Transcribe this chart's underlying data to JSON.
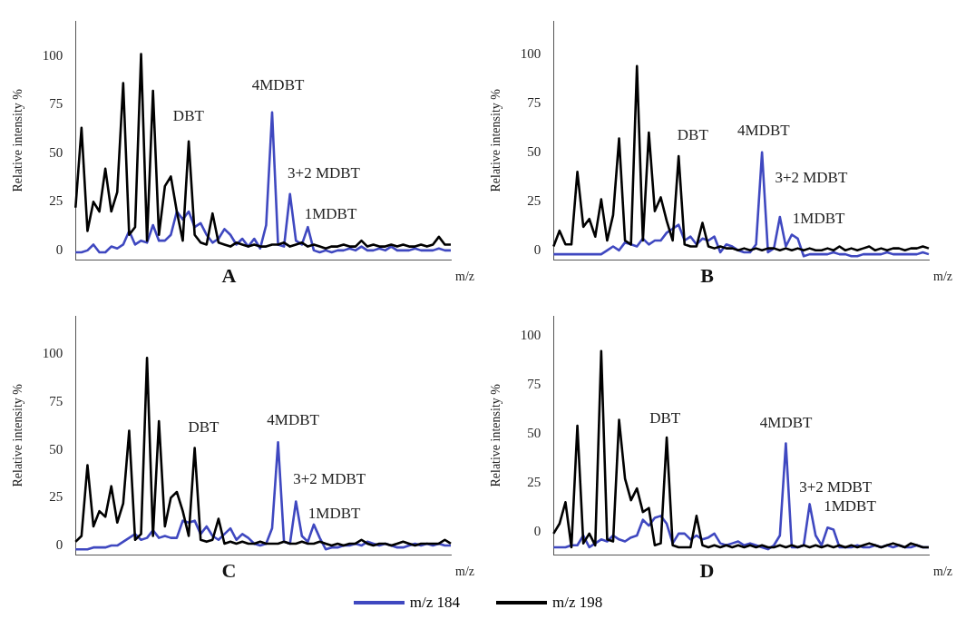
{
  "chart_data": [
    {
      "type": "line",
      "title": "A",
      "xlabel": "m/z",
      "ylabel": "Relative intensity %",
      "ylim": [
        -5,
        118
      ],
      "yticks": [
        0,
        25,
        50,
        75,
        100
      ],
      "tick_labels": "y",
      "grid": false,
      "categories": [
        null,
        null,
        null,
        null,
        null,
        null,
        null,
        null,
        null,
        null,
        null,
        null,
        null,
        null,
        null,
        null,
        null,
        null,
        null,
        null,
        null,
        null,
        null,
        null,
        null,
        null,
        null,
        null,
        null,
        null,
        null,
        null,
        null,
        null,
        null,
        null,
        null,
        null,
        null,
        null,
        null,
        null,
        null,
        null,
        null,
        null,
        null,
        null,
        null,
        null,
        null,
        null,
        null,
        null,
        null,
        null,
        null,
        null,
        null,
        null,
        null,
        null,
        null,
        null
      ],
      "series": [
        {
          "color": "#000000",
          "values": [
            22,
            63,
            10,
            25,
            20,
            42,
            20,
            30,
            86,
            8,
            12,
            101,
            5,
            82,
            8,
            33,
            38,
            20,
            5,
            56,
            8,
            4,
            3,
            19,
            4,
            3,
            2,
            4,
            3,
            2,
            3,
            2,
            2,
            3,
            3,
            4,
            2,
            3,
            4,
            2,
            3,
            2,
            1,
            2,
            2,
            3,
            2,
            2,
            5,
            2,
            3,
            2,
            2,
            3,
            2,
            3,
            2,
            2,
            3,
            2,
            3,
            7,
            3,
            3
          ]
        },
        {
          "color": "#3f48c0",
          "values": [
            -1,
            -1,
            0,
            3,
            -1,
            -1,
            2,
            1,
            3,
            10,
            3,
            5,
            4,
            13,
            5,
            5,
            8,
            20,
            16,
            20,
            12,
            14,
            8,
            4,
            6,
            11,
            8,
            3,
            6,
            2,
            6,
            1,
            13,
            71,
            3,
            2,
            29,
            5,
            3,
            12,
            0,
            -1,
            0,
            -1,
            0,
            0,
            1,
            0,
            2,
            0,
            0,
            1,
            0,
            2,
            0,
            0,
            0,
            1,
            0,
            0,
            0,
            1,
            0,
            0
          ]
        }
      ],
      "annotations": [
        "DBT",
        "4MDBT",
        "3+2 MDBT",
        "1MDBT"
      ]
    },
    {
      "type": "line",
      "title": "B",
      "xlabel": "m/z",
      "ylabel": "Relative intensity %",
      "ylim": [
        -5,
        117
      ],
      "yticks": [
        0,
        25,
        50,
        75,
        100
      ],
      "tick_labels": "y",
      "grid": false,
      "categories": [
        null,
        null,
        null,
        null,
        null,
        null,
        null,
        null,
        null,
        null,
        null,
        null,
        null,
        null,
        null,
        null,
        null,
        null,
        null,
        null,
        null,
        null,
        null,
        null,
        null,
        null,
        null,
        null,
        null,
        null,
        null,
        null,
        null,
        null,
        null,
        null,
        null,
        null,
        null,
        null,
        null,
        null,
        null,
        null,
        null,
        null,
        null,
        null,
        null,
        null,
        null,
        null,
        null,
        null,
        null,
        null,
        null,
        null,
        null,
        null,
        null,
        null,
        null,
        null
      ],
      "series": [
        {
          "color": "#000000",
          "values": [
            2,
            10,
            3,
            3,
            40,
            12,
            16,
            7,
            26,
            5,
            18,
            57,
            5,
            3,
            94,
            5,
            60,
            20,
            27,
            15,
            5,
            48,
            3,
            2,
            2,
            14,
            2,
            1,
            2,
            1,
            1,
            0,
            1,
            0,
            1,
            0,
            1,
            1,
            0,
            1,
            0,
            1,
            0,
            1,
            0,
            0,
            1,
            0,
            2,
            0,
            1,
            0,
            1,
            2,
            0,
            1,
            0,
            1,
            1,
            0,
            1,
            1,
            2,
            1
          ]
        },
        {
          "color": "#3f48c0",
          "values": [
            -2,
            -2,
            -2,
            -2,
            -2,
            -2,
            -2,
            -2,
            -2,
            0,
            2,
            0,
            4,
            3,
            2,
            6,
            3,
            5,
            5,
            9,
            11,
            13,
            5,
            7,
            3,
            6,
            5,
            7,
            -1,
            3,
            2,
            0,
            -1,
            -1,
            3,
            50,
            -1,
            1,
            17,
            2,
            8,
            6,
            -3,
            -2,
            -2,
            -2,
            -2,
            -1,
            -2,
            -2,
            -3,
            -3,
            -2,
            -2,
            -2,
            -2,
            -1,
            -2,
            -2,
            -2,
            -2,
            -2,
            -1,
            -2
          ]
        }
      ],
      "annotations": [
        "DBT",
        "4MDBT",
        "3+2 MDBT",
        "1MDBT"
      ]
    },
    {
      "type": "line",
      "title": "C",
      "xlabel": "m/z",
      "ylabel": "Relative intensity %",
      "ylim": [
        -5,
        120
      ],
      "yticks": [
        0,
        25,
        50,
        75,
        100
      ],
      "tick_labels": "y",
      "grid": false,
      "categories": [
        null,
        null,
        null,
        null,
        null,
        null,
        null,
        null,
        null,
        null,
        null,
        null,
        null,
        null,
        null,
        null,
        null,
        null,
        null,
        null,
        null,
        null,
        null,
        null,
        null,
        null,
        null,
        null,
        null,
        null,
        null,
        null,
        null,
        null,
        null,
        null,
        null,
        null,
        null,
        null,
        null,
        null,
        null,
        null,
        null,
        null,
        null,
        null,
        null,
        null,
        null,
        null,
        null,
        null,
        null,
        null,
        null,
        null,
        null,
        null,
        null,
        null,
        null,
        null
      ],
      "series": [
        {
          "color": "#000000",
          "values": [
            2,
            5,
            42,
            10,
            18,
            15,
            31,
            12,
            22,
            60,
            3,
            6,
            98,
            5,
            65,
            10,
            25,
            28,
            18,
            5,
            51,
            3,
            2,
            3,
            14,
            1,
            2,
            1,
            2,
            1,
            1,
            2,
            1,
            1,
            1,
            2,
            1,
            1,
            2,
            1,
            1,
            2,
            1,
            0,
            1,
            0,
            1,
            1,
            3,
            1,
            0,
            1,
            1,
            0,
            1,
            2,
            1,
            0,
            1,
            1,
            1,
            1,
            3,
            1
          ]
        },
        {
          "color": "#3f48c0",
          "values": [
            -2,
            -2,
            -2,
            -1,
            -1,
            -1,
            0,
            0,
            2,
            4,
            6,
            3,
            4,
            8,
            4,
            5,
            4,
            4,
            13,
            12,
            13,
            6,
            10,
            5,
            3,
            6,
            9,
            3,
            6,
            4,
            1,
            0,
            1,
            9,
            54,
            2,
            1,
            23,
            5,
            2,
            11,
            4,
            -2,
            -1,
            -1,
            0,
            0,
            1,
            0,
            2,
            1,
            0,
            1,
            0,
            -1,
            -1,
            0,
            1,
            0,
            1,
            0,
            1,
            0,
            0
          ]
        }
      ],
      "annotations": [
        "DBT",
        "4MDBT",
        "3+2 MDBT",
        "1MDBT"
      ]
    },
    {
      "type": "line",
      "title": "D",
      "xlabel": "m/z",
      "ylabel": "Relative intensity %",
      "ylim": [
        -12,
        110
      ],
      "yticks": [
        0,
        25,
        50,
        75,
        100
      ],
      "tick_labels": "y",
      "grid": false,
      "legend": "bottom",
      "categories": [
        null,
        null,
        null,
        null,
        null,
        null,
        null,
        null,
        null,
        null,
        null,
        null,
        null,
        null,
        null,
        null,
        null,
        null,
        null,
        null,
        null,
        null,
        null,
        null,
        null,
        null,
        null,
        null,
        null,
        null,
        null,
        null,
        null,
        null,
        null,
        null,
        null,
        null,
        null,
        null,
        null,
        null,
        null,
        null,
        null,
        null,
        null,
        null,
        null,
        null,
        null,
        null,
        null,
        null,
        null,
        null,
        null,
        null,
        null,
        null,
        null,
        null,
        null,
        null
      ],
      "series": [
        {
          "name": "m/z 198",
          "color": "#000000",
          "values": [
            -1,
            4,
            15,
            -8,
            54,
            -6,
            -1,
            -7,
            92,
            -4,
            -5,
            57,
            27,
            16,
            22,
            10,
            12,
            -7,
            -6,
            48,
            -7,
            -8,
            -8,
            -8,
            8,
            -7,
            -8,
            -7,
            -8,
            -7,
            -8,
            -7,
            -8,
            -7,
            -8,
            -7,
            -8,
            -8,
            -7,
            -8,
            -7,
            -8,
            -7,
            -8,
            -7,
            -8,
            -7,
            -8,
            -7,
            -8,
            -7,
            -8,
            -7,
            -6,
            -7,
            -8,
            -7,
            -6,
            -7,
            -8,
            -6,
            -7,
            -8,
            -8
          ]
        },
        {
          "name": "m/z 184",
          "color": "#3f48c0",
          "values": [
            -8,
            -8,
            -8,
            -7,
            -7,
            -2,
            -8,
            -6,
            -4,
            -5,
            -2,
            -4,
            -5,
            -3,
            -2,
            6,
            3,
            7,
            8,
            4,
            -6,
            -1,
            -1,
            -4,
            -2,
            -4,
            -3,
            -1,
            -6,
            -7,
            -6,
            -5,
            -7,
            -6,
            -7,
            -8,
            -9,
            -7,
            -2,
            45,
            -8,
            -8,
            -7,
            14,
            -2,
            -7,
            2,
            1,
            -8,
            -8,
            -8,
            -7,
            -8,
            -8,
            -7,
            -8,
            -7,
            -8,
            -7,
            -8,
            -8,
            -7,
            -8,
            -8
          ]
        }
      ],
      "annotations": [
        "DBT",
        "4MDBT",
        "3+2 MDBT",
        "1MDBT"
      ]
    }
  ]
}
